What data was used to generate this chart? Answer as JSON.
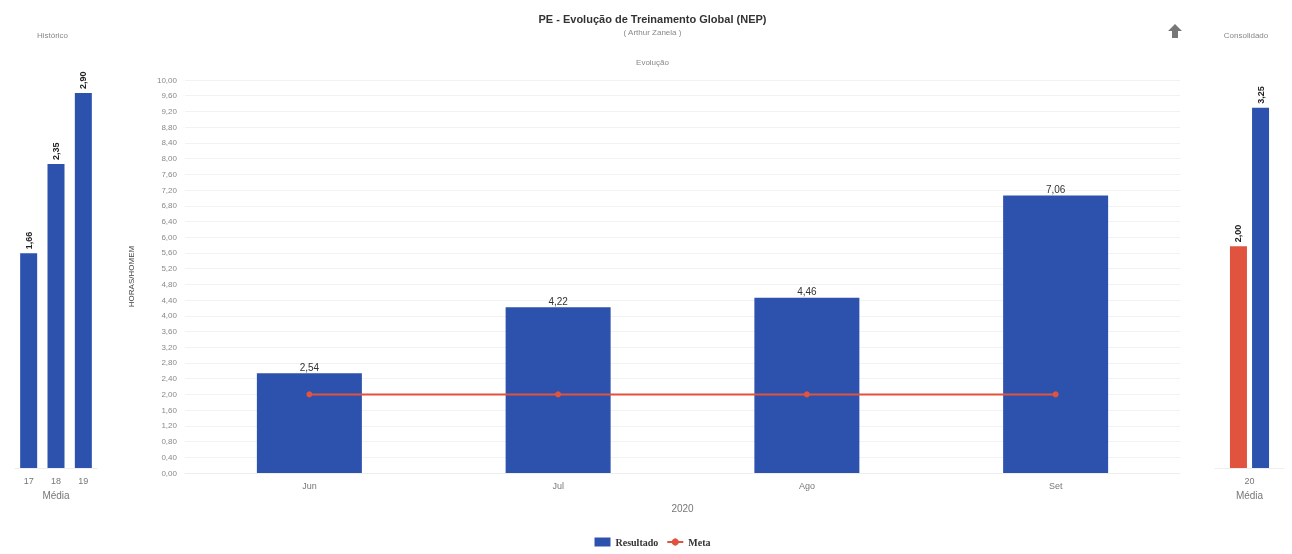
{
  "chart_data": [
    {
      "type": "bar",
      "title": "Histórico",
      "categories": [
        "17",
        "18",
        "19"
      ],
      "values": [
        1.66,
        2.35,
        2.9
      ],
      "value_labels": [
        "1,66",
        "2,35",
        "2,90"
      ],
      "color": "#2c52ae",
      "xlabel": "Média",
      "tick_labels": "x"
    },
    {
      "type": "bar",
      "title": "PE - Evolução de Treinamento Global (NEP)",
      "subtitle": "( Arthur Zanela )",
      "annotations": [
        "Evolução"
      ],
      "xlabel": "2020",
      "ylabel": "HORAS/HOMEM",
      "categories": [
        "Jun",
        "Jul",
        "Ago",
        "Set"
      ],
      "series": [
        {
          "name": "Resultado",
          "type": "bar",
          "color": "#2c52ae",
          "values": [
            2.54,
            4.22,
            4.46,
            7.06
          ],
          "value_labels": [
            "2,54",
            "4,22",
            "4,46",
            "7,06"
          ]
        },
        {
          "name": "Meta",
          "type": "line",
          "color": "#e0533f",
          "values": [
            2.0,
            2.0,
            2.0,
            2.0
          ],
          "marker": "circle"
        }
      ],
      "ylim": [
        0,
        10
      ],
      "yticks": [
        {
          "value": 0,
          "label": "0,00"
        },
        {
          "value": 0.4,
          "label": "0,40"
        },
        {
          "value": 0.8,
          "label": "0,80"
        },
        {
          "value": 1.2,
          "label": "1,20"
        },
        {
          "value": 1.6,
          "label": "1,60"
        },
        {
          "value": 2,
          "label": "2,00"
        },
        {
          "value": 2.4,
          "label": "2,40"
        },
        {
          "value": 2.8,
          "label": "2,80"
        },
        {
          "value": 3.2,
          "label": "3,20"
        },
        {
          "value": 3.6,
          "label": "3,60"
        },
        {
          "value": 4,
          "label": "4,00"
        },
        {
          "value": 4.4,
          "label": "4,40"
        },
        {
          "value": 4.8,
          "label": "4,80"
        },
        {
          "value": 5.2,
          "label": "5,20"
        },
        {
          "value": 5.6,
          "label": "5,60"
        },
        {
          "value": 6,
          "label": "6,00"
        },
        {
          "value": 6.4,
          "label": "6,40"
        },
        {
          "value": 6.8,
          "label": "6,80"
        },
        {
          "value": 7.2,
          "label": "7,20"
        },
        {
          "value": 7.6,
          "label": "7,60"
        },
        {
          "value": 8,
          "label": "8,00"
        },
        {
          "value": 8.4,
          "label": "8,40"
        },
        {
          "value": 8.8,
          "label": "8,80"
        },
        {
          "value": 9.2,
          "label": "9,20"
        },
        {
          "value": 9.6,
          "label": "9,60"
        },
        {
          "value": 10,
          "label": "10,00"
        }
      ],
      "grid": "y",
      "legend": "bottom"
    },
    {
      "type": "bar",
      "title": "Consolidado",
      "categories": [
        "20"
      ],
      "xlabel": "Média",
      "tick_labels": "x",
      "series": [
        {
          "color": "#e0533f",
          "values": [
            2.0
          ],
          "value_labels": [
            "2,00"
          ]
        },
        {
          "color": "#2c52ae",
          "values": [
            3.25
          ],
          "value_labels": [
            "3,25"
          ]
        }
      ]
    }
  ]
}
